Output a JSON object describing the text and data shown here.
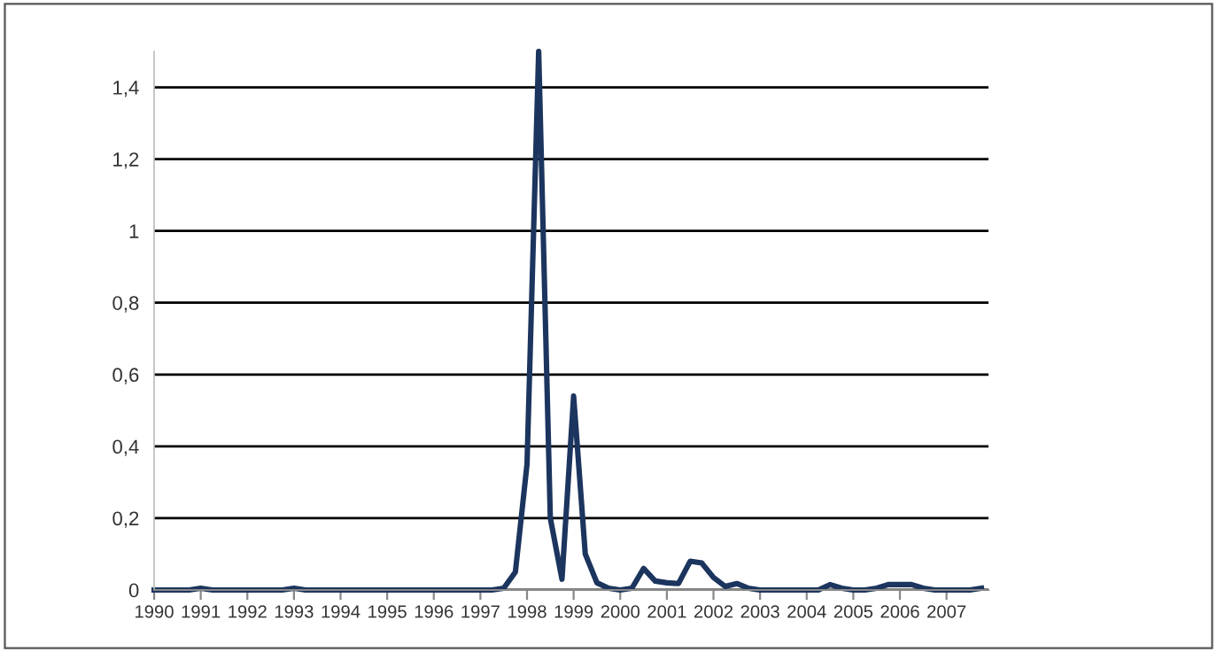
{
  "chart_data": {
    "type": "line",
    "x": [
      1990,
      1990.25,
      1990.5,
      1990.75,
      1991,
      1991.25,
      1991.5,
      1991.75,
      1992,
      1992.25,
      1992.5,
      1992.75,
      1993,
      1993.25,
      1993.5,
      1993.75,
      1994,
      1994.25,
      1994.5,
      1994.75,
      1995,
      1995.25,
      1995.5,
      1995.75,
      1996,
      1996.25,
      1996.5,
      1996.75,
      1997,
      1997.25,
      1997.5,
      1997.75,
      1998,
      1998.25,
      1998.5,
      1998.75,
      1999,
      1999.25,
      1999.5,
      1999.75,
      2000,
      2000.25,
      2000.5,
      2000.75,
      2001,
      2001.25,
      2001.5,
      2001.75,
      2002,
      2002.25,
      2002.5,
      2002.75,
      2003,
      2003.25,
      2003.5,
      2003.75,
      2004,
      2004.25,
      2004.5,
      2004.75,
      2005,
      2005.25,
      2005.5,
      2005.75,
      2006,
      2006.25,
      2006.5,
      2006.75,
      2007,
      2007.25,
      2007.5,
      2007.75
    ],
    "series": [
      {
        "color": "#1c355e",
        "values": [
          0,
          0,
          0,
          0,
          0.005,
          0,
          0,
          0,
          0,
          0,
          0,
          0,
          0.005,
          0,
          0,
          0,
          0,
          0,
          0,
          0,
          0,
          0,
          0,
          0,
          0,
          0,
          0,
          0,
          0,
          0,
          0.005,
          0.05,
          0.35,
          1.5,
          0.2,
          0.03,
          0.54,
          0.1,
          0.02,
          0.005,
          0,
          0.005,
          0.06,
          0.025,
          0.02,
          0.018,
          0.08,
          0.075,
          0.035,
          0.01,
          0.018,
          0.005,
          0,
          0,
          0,
          0,
          0,
          0,
          0.015,
          0.005,
          0,
          0,
          0.005,
          0.015,
          0.015,
          0.015,
          0.005,
          0,
          0,
          0,
          0,
          0.005
        ]
      }
    ],
    "xlim": [
      1990,
      2007.9
    ],
    "xticks": [
      1990,
      1991,
      1992,
      1993,
      1994,
      1995,
      1996,
      1997,
      1998,
      1999,
      2000,
      2001,
      2002,
      2003,
      2004,
      2005,
      2006,
      2007
    ],
    "ylim": [
      0,
      1.5
    ],
    "yticks": [
      0,
      {
        "value": 0.2,
        "label": "0,2"
      },
      {
        "value": 0.4,
        "label": "0,4"
      },
      {
        "value": 0.6,
        "label": "0,6"
      },
      {
        "value": 0.8,
        "label": "0,8"
      },
      {
        "value": 1,
        "label": "1"
      },
      {
        "value": 1.2,
        "label": "1,2"
      },
      {
        "value": 1.4,
        "label": "1,4"
      }
    ],
    "grid": "y",
    "marker": "none",
    "line_style": "solid",
    "legend": false
  }
}
